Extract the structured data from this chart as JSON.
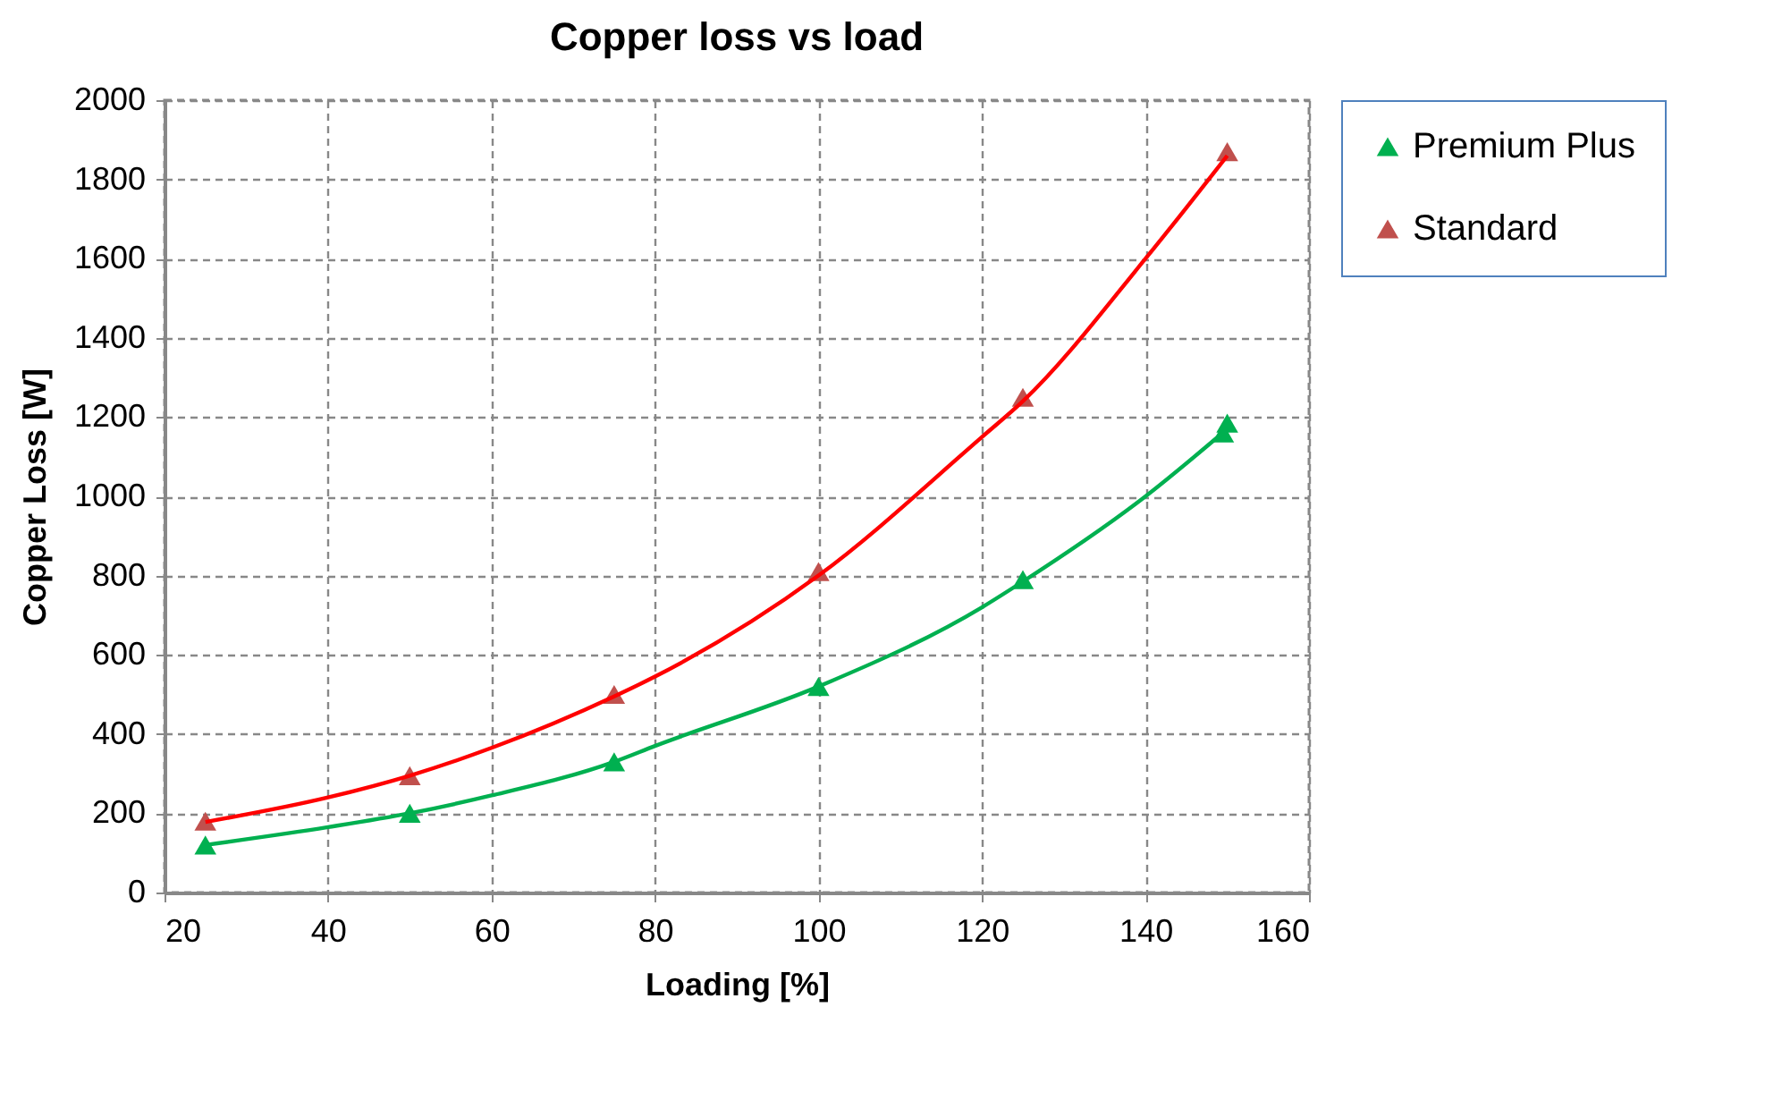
{
  "chart_data": {
    "type": "scatter",
    "title": "Copper loss vs load",
    "xlabel": "Loading [%]",
    "ylabel": "Copper Loss [W]",
    "xlim": [
      20,
      160
    ],
    "xticks": [
      20,
      40,
      60,
      80,
      100,
      120,
      140,
      160
    ],
    "ylim": [
      0,
      2000
    ],
    "yticks": [
      0,
      200,
      400,
      600,
      800,
      1000,
      1200,
      1400,
      1600,
      1800,
      2000
    ],
    "grid": true,
    "legend": "right",
    "marker": "triangle",
    "series": [
      {
        "name": "Premium Plus",
        "color": "#00b050",
        "x": [
          25,
          50,
          75,
          100,
          125,
          149.5,
          150
        ],
        "values": [
          120,
          200,
          330,
          520,
          790,
          1160,
          1185
        ]
      },
      {
        "name": "Standard",
        "color": "#c0504d",
        "x": [
          25,
          50,
          75,
          100,
          125,
          150
        ],
        "values": [
          180,
          295,
          500,
          810,
          1250,
          1870
        ]
      },
      {
        "type": "line",
        "color": "#00b050",
        "line_style": "solid",
        "marker": "none",
        "x": [
          25,
          40,
          50,
          60,
          75,
          80,
          100,
          120,
          125,
          140,
          150
        ],
        "values": [
          120,
          165,
          200,
          245,
          330,
          370,
          520,
          720,
          785,
          1000,
          1170
        ]
      },
      {
        "type": "line",
        "color": "#ff0000",
        "line_style": "solid",
        "marker": "none",
        "x": [
          25,
          40,
          50,
          60,
          75,
          80,
          100,
          120,
          125,
          140,
          150
        ],
        "values": [
          178,
          240,
          295,
          365,
          495,
          545,
          800,
          1150,
          1240,
          1600,
          1860
        ]
      }
    ]
  }
}
